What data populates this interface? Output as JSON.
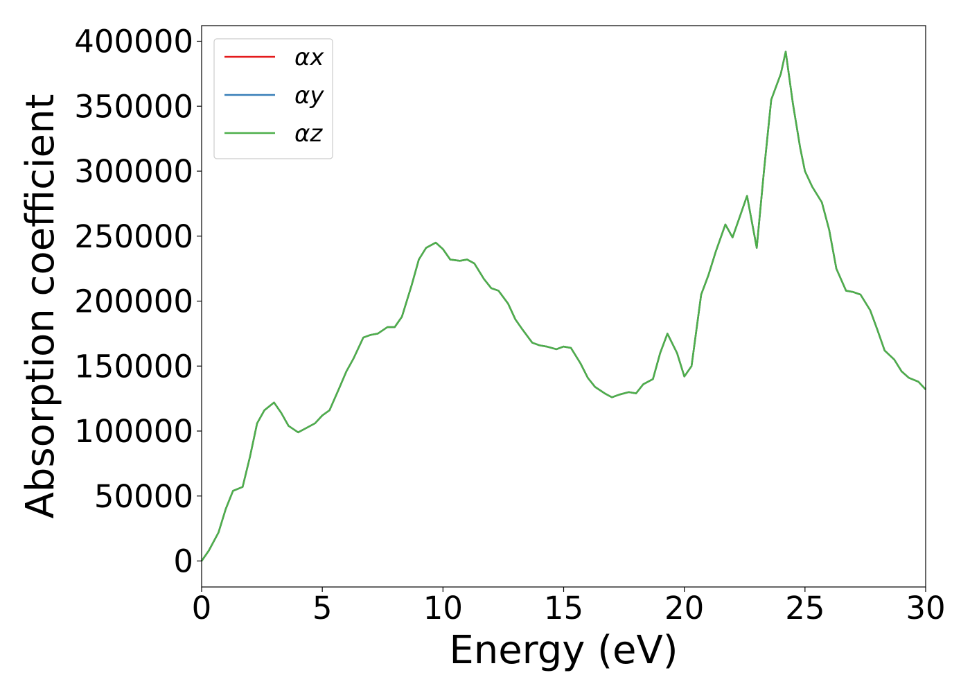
{
  "chart_data": {
    "type": "line",
    "xlabel": "Energy (eV)",
    "ylabel": "Absorption coefficient",
    "xlim": [
      0,
      30
    ],
    "ylim": [
      -20000,
      412000
    ],
    "xticks": [
      0,
      5,
      10,
      15,
      20,
      25,
      30
    ],
    "yticks": [
      0,
      50000,
      100000,
      150000,
      200000,
      250000,
      300000,
      350000,
      400000
    ],
    "grid": false,
    "legend_position": "top-left",
    "x": [
      0,
      0.3,
      0.7,
      1.0,
      1.3,
      1.7,
      2.0,
      2.3,
      2.6,
      3.0,
      3.3,
      3.6,
      4.0,
      4.3,
      4.7,
      5.0,
      5.3,
      5.7,
      6.0,
      6.3,
      6.7,
      7.0,
      7.3,
      7.7,
      8.0,
      8.3,
      8.7,
      9.0,
      9.3,
      9.7,
      10.0,
      10.3,
      10.7,
      11.0,
      11.3,
      11.7,
      12.0,
      12.3,
      12.7,
      13.0,
      13.3,
      13.7,
      14.0,
      14.3,
      14.7,
      15.0,
      15.3,
      15.7,
      16.0,
      16.3,
      16.7,
      17.0,
      17.3,
      17.7,
      18.0,
      18.3,
      18.7,
      19.0,
      19.3,
      19.7,
      20.0,
      20.3,
      20.7,
      21.0,
      21.3,
      21.7,
      22.0,
      22.3,
      22.6,
      23.0,
      23.3,
      23.6,
      24.0,
      24.2,
      24.5,
      24.8,
      25.0,
      25.3,
      25.7,
      26.0,
      26.3,
      26.7,
      27.0,
      27.3,
      27.7,
      28.0,
      28.3,
      28.7,
      29.0,
      29.3,
      29.7,
      30.0
    ],
    "series": [
      {
        "name": "αx",
        "color": "#e41a1c",
        "values": [
          0,
          8000,
          22000,
          40000,
          54000,
          57000,
          80000,
          106000,
          116000,
          122000,
          114000,
          104000,
          99000,
          102000,
          106000,
          112000,
          116000,
          133000,
          146000,
          156000,
          172000,
          174000,
          175000,
          180000,
          180000,
          188000,
          212000,
          232000,
          241000,
          245000,
          240000,
          232000,
          231000,
          232000,
          229000,
          217000,
          210000,
          208000,
          198000,
          186000,
          178000,
          168000,
          166000,
          165000,
          163000,
          165000,
          164000,
          152000,
          141000,
          134000,
          129000,
          126000,
          128000,
          130000,
          129000,
          136000,
          140000,
          160000,
          175000,
          160000,
          142000,
          150000,
          205000,
          220000,
          238000,
          259000,
          249000,
          265000,
          281000,
          241000,
          300000,
          355000,
          375000,
          392000,
          352000,
          318000,
          300000,
          288000,
          276000,
          255000,
          225000,
          208000,
          207000,
          205000,
          193000,
          178000,
          162000,
          155000,
          146000,
          141000,
          138000,
          132000
        ]
      },
      {
        "name": "αy",
        "color": "#377eb8",
        "values": [
          0,
          8000,
          22000,
          40000,
          54000,
          57000,
          80000,
          106000,
          116000,
          122000,
          114000,
          104000,
          99000,
          102000,
          106000,
          112000,
          116000,
          133000,
          146000,
          156000,
          172000,
          174000,
          175000,
          180000,
          180000,
          188000,
          212000,
          232000,
          241000,
          245000,
          240000,
          232000,
          231000,
          232000,
          229000,
          217000,
          210000,
          208000,
          198000,
          186000,
          178000,
          168000,
          166000,
          165000,
          163000,
          165000,
          164000,
          152000,
          141000,
          134000,
          129000,
          126000,
          128000,
          130000,
          129000,
          136000,
          140000,
          160000,
          175000,
          160000,
          142000,
          150000,
          205000,
          220000,
          238000,
          259000,
          249000,
          265000,
          281000,
          241000,
          300000,
          355000,
          375000,
          392000,
          352000,
          318000,
          300000,
          288000,
          276000,
          255000,
          225000,
          208000,
          207000,
          205000,
          193000,
          178000,
          162000,
          155000,
          146000,
          141000,
          138000,
          132000
        ]
      },
      {
        "name": "αz",
        "color": "#4daf4a",
        "values": [
          0,
          8000,
          22000,
          40000,
          54000,
          57000,
          80000,
          106000,
          116000,
          122000,
          114000,
          104000,
          99000,
          102000,
          106000,
          112000,
          116000,
          133000,
          146000,
          156000,
          172000,
          174000,
          175000,
          180000,
          180000,
          188000,
          212000,
          232000,
          241000,
          245000,
          240000,
          232000,
          231000,
          232000,
          229000,
          217000,
          210000,
          208000,
          198000,
          186000,
          178000,
          168000,
          166000,
          165000,
          163000,
          165000,
          164000,
          152000,
          141000,
          134000,
          129000,
          126000,
          128000,
          130000,
          129000,
          136000,
          140000,
          160000,
          175000,
          160000,
          142000,
          150000,
          205000,
          220000,
          238000,
          259000,
          249000,
          265000,
          281000,
          241000,
          300000,
          355000,
          375000,
          392000,
          352000,
          318000,
          300000,
          288000,
          276000,
          255000,
          225000,
          208000,
          207000,
          205000,
          193000,
          178000,
          162000,
          155000,
          146000,
          141000,
          138000,
          132000
        ]
      }
    ]
  }
}
